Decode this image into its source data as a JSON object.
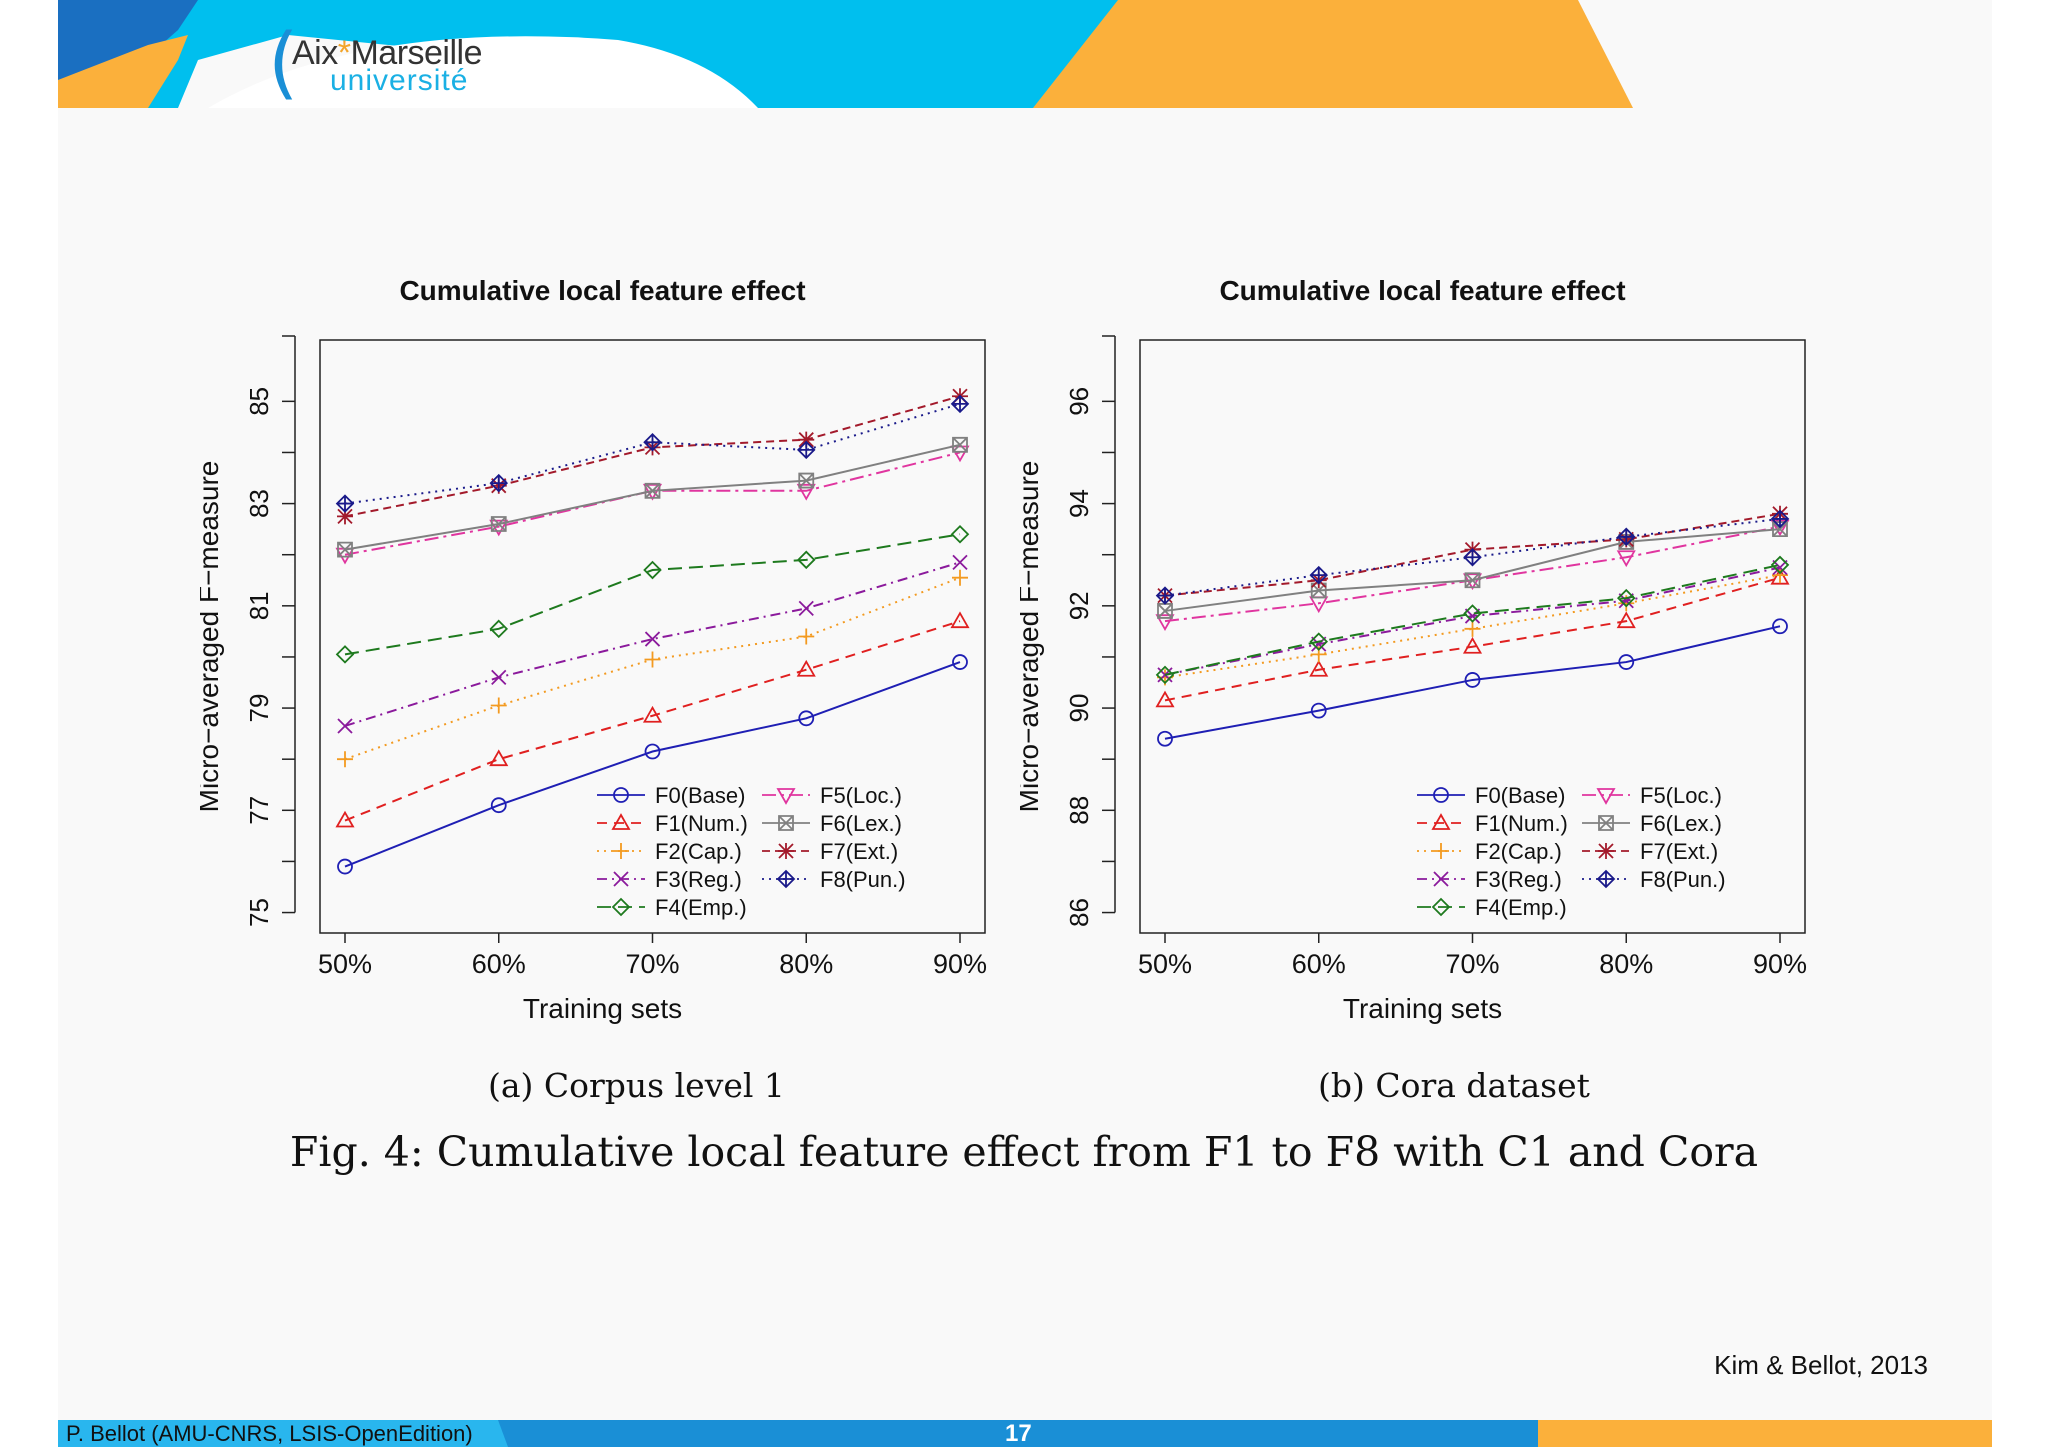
{
  "header": {
    "logo_line1_a": "Aix",
    "logo_star": "*",
    "logo_line1_b": "Marseille",
    "logo_line2": "université"
  },
  "colors": {
    "band_blue": "#00bfee",
    "band_dark_blue": "#1a6fc1",
    "band_orange": "#fbb03b",
    "F0": "#1f1fb4",
    "F1": "#e02020",
    "F2": "#f39a20",
    "F3": "#8b1a9c",
    "F4": "#1e7a1e",
    "F5": "#e0359f",
    "F6": "#808080",
    "F7": "#a31a2b",
    "F8": "#1a1a8a"
  },
  "chart_data": [
    {
      "type": "line",
      "title": "Cumulative local feature effect",
      "xlabel": "Training sets",
      "ylabel": "Micro−averaged F−measure",
      "categories": [
        "50%",
        "60%",
        "70%",
        "80%",
        "90%"
      ],
      "ylim": [
        74.6,
        86.2
      ],
      "yticks": [
        75,
        77,
        79,
        81,
        83,
        85
      ],
      "subcaption": "(a) Corpus level 1",
      "legend_position": "bottom-right",
      "series": [
        {
          "name": "F0(Base)",
          "values": [
            75.9,
            77.1,
            78.15,
            78.8,
            79.9
          ]
        },
        {
          "name": "F1(Num.)",
          "values": [
            76.8,
            78.0,
            78.85,
            79.75,
            80.7
          ]
        },
        {
          "name": "F2(Cap.)",
          "values": [
            78.0,
            79.05,
            79.95,
            80.4,
            81.55
          ]
        },
        {
          "name": "F3(Reg.)",
          "values": [
            78.65,
            79.6,
            80.35,
            80.95,
            81.85
          ]
        },
        {
          "name": "F4(Emp.)",
          "values": [
            80.05,
            80.55,
            81.7,
            81.9,
            82.4
          ]
        },
        {
          "name": "F5(Loc.)",
          "values": [
            82.0,
            82.55,
            83.25,
            83.25,
            84.0
          ]
        },
        {
          "name": "F6(Lex.)",
          "values": [
            82.1,
            82.6,
            83.25,
            83.45,
            84.15
          ]
        },
        {
          "name": "F7(Ext.)",
          "values": [
            82.75,
            83.35,
            84.1,
            84.25,
            85.1
          ]
        },
        {
          "name": "F8(Pun.)",
          "values": [
            83.0,
            83.4,
            84.2,
            84.05,
            84.95
          ]
        }
      ]
    },
    {
      "type": "line",
      "title": "Cumulative local feature effect",
      "xlabel": "Training sets",
      "ylabel": "Micro−averaged F−measure",
      "categories": [
        "50%",
        "60%",
        "70%",
        "80%",
        "90%"
      ],
      "ylim": [
        85.6,
        97.2
      ],
      "yticks": [
        86,
        88,
        90,
        92,
        94,
        96
      ],
      "subcaption": "(b) Cora dataset",
      "legend_position": "bottom-right",
      "series": [
        {
          "name": "F0(Base)",
          "values": [
            89.4,
            89.95,
            90.55,
            90.9,
            91.6
          ]
        },
        {
          "name": "F1(Num.)",
          "values": [
            90.15,
            90.75,
            91.2,
            91.7,
            92.55
          ]
        },
        {
          "name": "F2(Cap.)",
          "values": [
            90.6,
            91.05,
            91.55,
            92.05,
            92.6
          ]
        },
        {
          "name": "F3(Reg.)",
          "values": [
            90.65,
            91.25,
            91.8,
            92.1,
            92.75
          ]
        },
        {
          "name": "F4(Emp.)",
          "values": [
            90.65,
            91.3,
            91.85,
            92.15,
            92.8
          ]
        },
        {
          "name": "F5(Loc.)",
          "values": [
            91.7,
            92.05,
            92.5,
            92.95,
            93.55
          ]
        },
        {
          "name": "F6(Lex.)",
          "values": [
            91.9,
            92.3,
            92.5,
            93.25,
            93.5
          ]
        },
        {
          "name": "F7(Ext.)",
          "values": [
            92.2,
            92.5,
            93.1,
            93.3,
            93.8
          ]
        },
        {
          "name": "F8(Pun.)",
          "values": [
            92.2,
            92.6,
            92.95,
            93.35,
            93.7
          ]
        }
      ]
    }
  ],
  "figure_caption": "Fig. 4: Cumulative local feature effect from F1 to F8 with C1 and Cora",
  "citation": "Kim & Bellot, 2013",
  "footer": {
    "author": "P. Bellot (AMU-CNRS, LSIS-OpenEdition)",
    "page": "17"
  }
}
